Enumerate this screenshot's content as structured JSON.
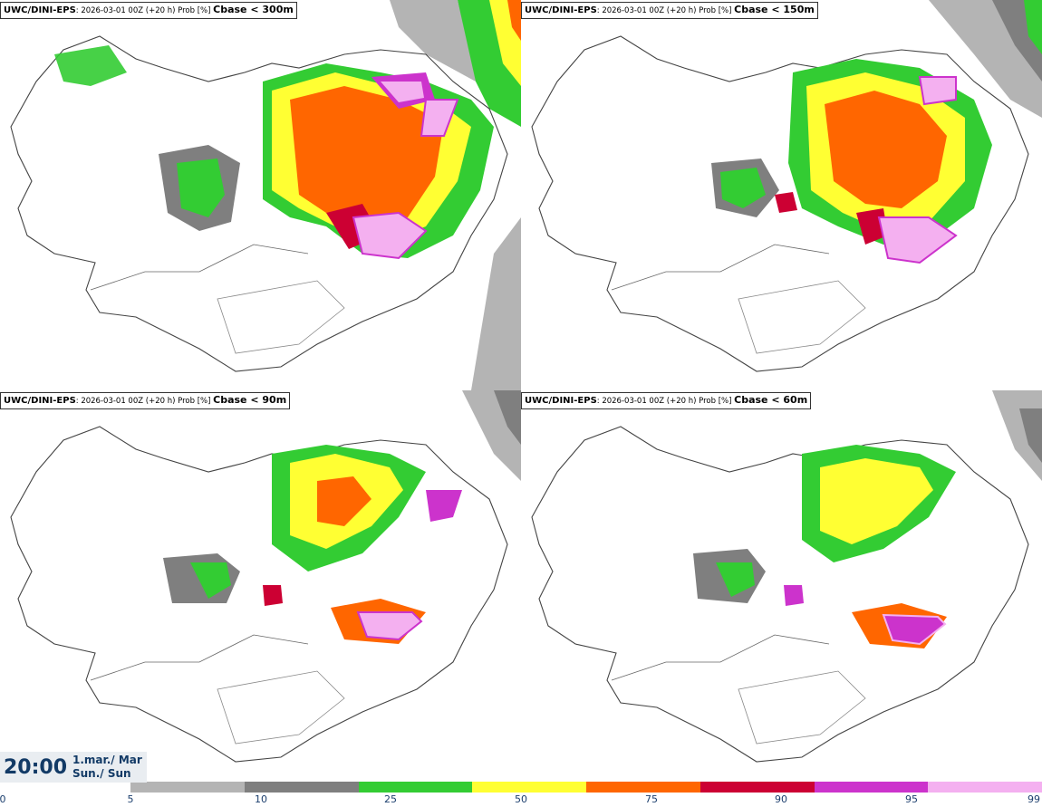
{
  "panels": [
    {
      "model": "UWC/DINI-EPS",
      "meta": ": 2026-03-01 00Z (+20 h) Prob [%] ",
      "variable": "Cbase < 300m"
    },
    {
      "model": "UWC/DINI-EPS",
      "meta": ": 2026-03-01 00Z (+20 h) Prob [%] ",
      "variable": "Cbase < 150m"
    },
    {
      "model": "UWC/DINI-EPS",
      "meta": ": 2026-03-01 00Z (+20 h) Prob [%] ",
      "variable": "Cbase < 90m"
    },
    {
      "model": "UWC/DINI-EPS",
      "meta": ": 2026-03-01 00Z (+20 h) Prob [%] ",
      "variable": "Cbase < 60m"
    }
  ],
  "valid": {
    "time": "20:00",
    "date_line1": "1.mar./ Mar",
    "date_line2": "Sun./ Sun"
  },
  "colorbar": {
    "colors": [
      "#b4b4b4",
      "#7f7f7f",
      "#33cc33",
      "#ffff33",
      "#ff6600",
      "#cc0033",
      "#cc33cc",
      "#f4b0f0"
    ],
    "ticks": [
      "0",
      "5",
      "10",
      "25",
      "50",
      "75",
      "90",
      "95",
      "99"
    ]
  }
}
